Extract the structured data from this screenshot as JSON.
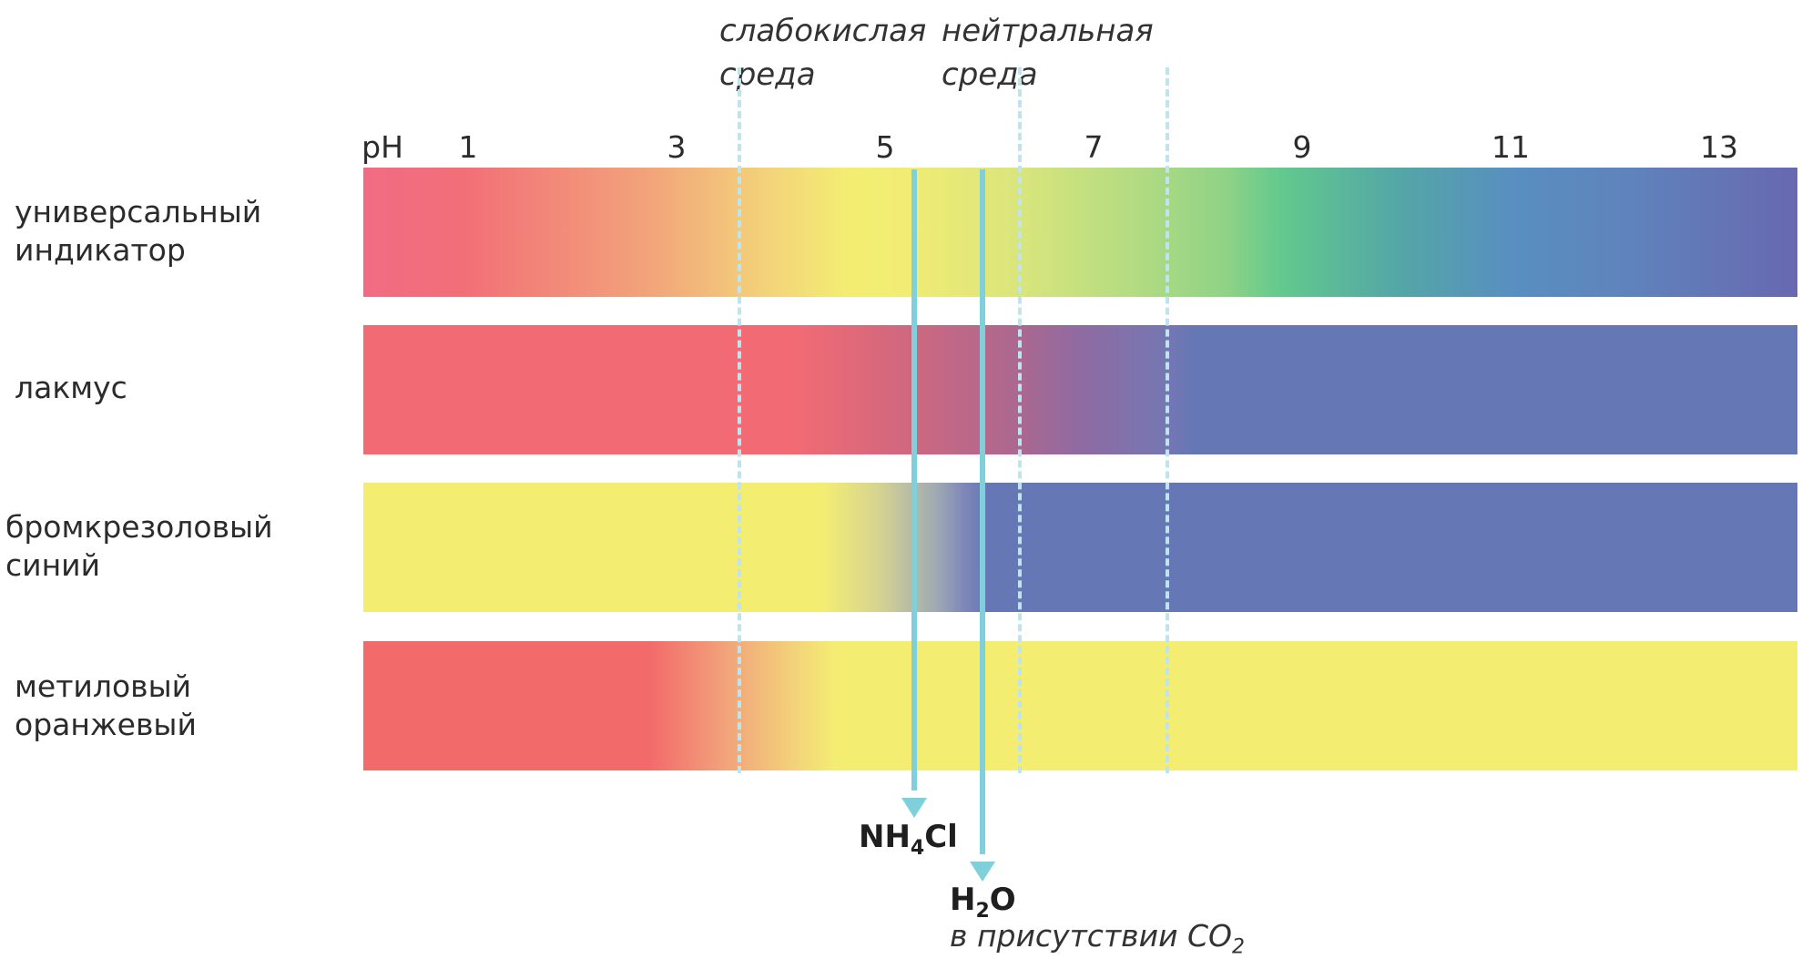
{
  "zones": {
    "weak_acid": {
      "line1": "слабокислая",
      "line2": "среда"
    },
    "neutral": {
      "line1": "нейтральная",
      "line2": "среда"
    }
  },
  "scale": {
    "label": "pH",
    "ticks": [
      "1",
      "3",
      "5",
      "7",
      "9",
      "11",
      "13"
    ]
  },
  "indicators": [
    {
      "line1": "универсальный",
      "line2": "индикатор"
    },
    {
      "line1": "лакмус",
      "line2": ""
    },
    {
      "line1": "бромкрезоловый",
      "line2": "синий"
    },
    {
      "line1": "метиловый",
      "line2": "оранжевый"
    }
  ],
  "markers": {
    "nh4cl": {
      "base": "NH",
      "sub": "4",
      "tail": "Cl"
    },
    "water": {
      "base": "H",
      "sub": "2",
      "tail": "O",
      "note_prefix": "в присутствии CO",
      "note_sub": "2"
    }
  },
  "colors": {
    "red": "#f26b74",
    "yellow": "#f3ee72",
    "blue": "#6577b5",
    "marker": "#7fd0da",
    "dashed": "#bfe4ec"
  }
}
